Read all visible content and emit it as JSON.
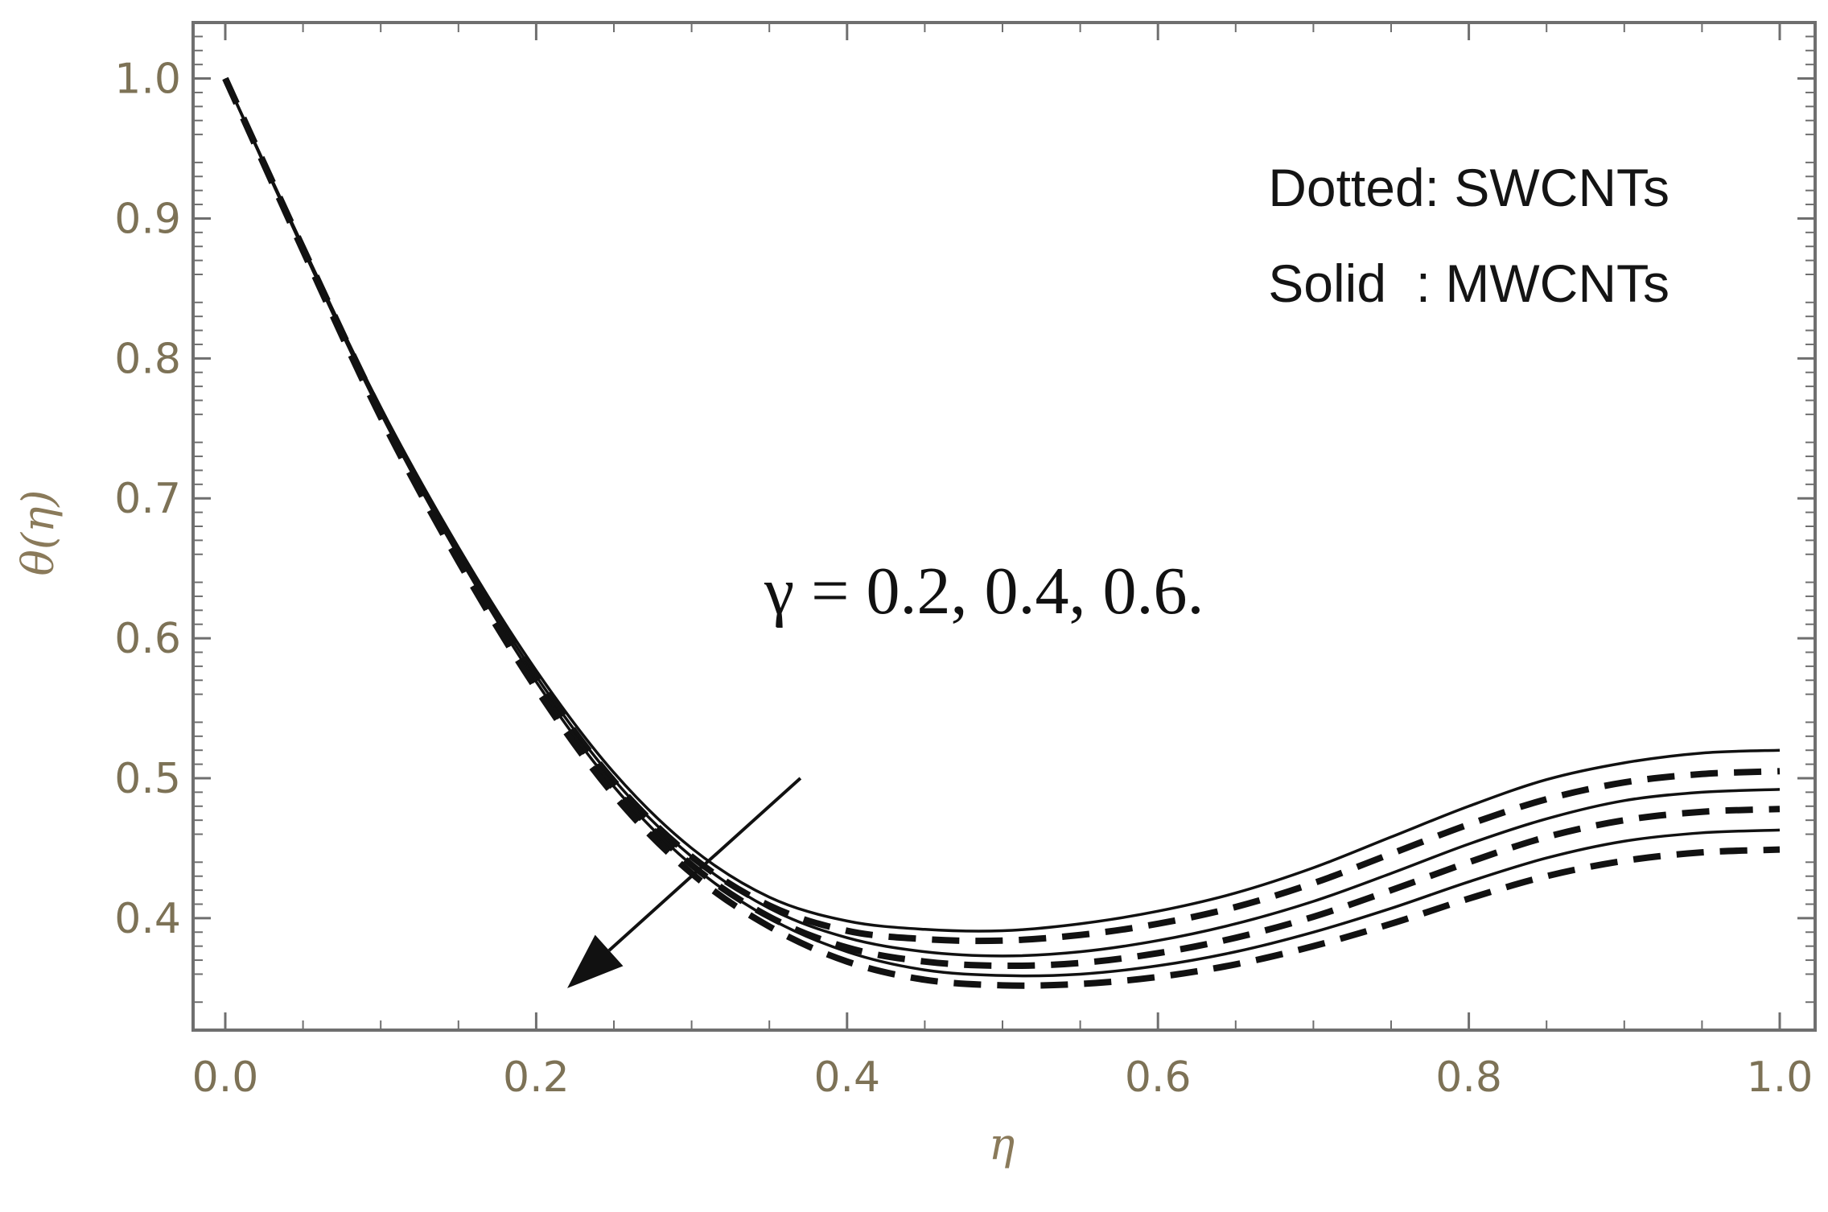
{
  "chart_data": {
    "type": "line",
    "title": "",
    "xlabel": "η",
    "ylabel": "θ(η)",
    "xlim": [
      0.0,
      1.0
    ],
    "ylim": [
      0.32,
      1.04
    ],
    "x_ticks": [
      "0.0",
      "0.2",
      "0.4",
      "0.6",
      "0.8",
      "1.0"
    ],
    "y_ticks": [
      "0.4",
      "0.5",
      "0.6",
      "0.7",
      "0.8",
      "0.9",
      "1.0"
    ],
    "grid": false,
    "legend_lines": [
      "Dotted: SWCNTs",
      "Solid  : MWCNTs"
    ],
    "legend_position": "top-right",
    "annotation": "γ = 0.2, 0.4, 0.6.",
    "arrow": {
      "from": [
        0.37,
        0.5
      ],
      "to": [
        0.22,
        0.35
      ],
      "meaning": "increasing γ"
    },
    "series": [
      {
        "style": "solid",
        "gamma": 0.2,
        "x": [
          0.0,
          0.05,
          0.1,
          0.15,
          0.2,
          0.25,
          0.3,
          0.35,
          0.4,
          0.45,
          0.5,
          0.55,
          0.6,
          0.65,
          0.7,
          0.75,
          0.8,
          0.85,
          0.9,
          0.95,
          1.0
        ],
        "y": [
          1.0,
          0.88,
          0.765,
          0.665,
          0.577,
          0.504,
          0.45,
          0.415,
          0.398,
          0.392,
          0.391,
          0.396,
          0.405,
          0.418,
          0.436,
          0.458,
          0.48,
          0.499,
          0.511,
          0.518,
          0.52
        ]
      },
      {
        "style": "dotted",
        "gamma": 0.2,
        "x": [
          0.0,
          0.05,
          0.1,
          0.15,
          0.2,
          0.25,
          0.3,
          0.35,
          0.4,
          0.45,
          0.5,
          0.55,
          0.6,
          0.65,
          0.7,
          0.75,
          0.8,
          0.85,
          0.9,
          0.95,
          1.0
        ],
        "y": [
          1.0,
          0.879,
          0.762,
          0.661,
          0.572,
          0.498,
          0.444,
          0.409,
          0.391,
          0.385,
          0.384,
          0.388,
          0.396,
          0.408,
          0.425,
          0.446,
          0.467,
          0.485,
          0.497,
          0.503,
          0.505
        ]
      },
      {
        "style": "solid",
        "gamma": 0.4,
        "x": [
          0.0,
          0.05,
          0.1,
          0.15,
          0.2,
          0.25,
          0.3,
          0.35,
          0.4,
          0.45,
          0.5,
          0.55,
          0.6,
          0.65,
          0.7,
          0.75,
          0.8,
          0.85,
          0.9,
          0.95,
          1.0
        ],
        "y": [
          1.0,
          0.879,
          0.763,
          0.662,
          0.573,
          0.499,
          0.444,
          0.407,
          0.386,
          0.376,
          0.373,
          0.376,
          0.384,
          0.396,
          0.412,
          0.432,
          0.453,
          0.471,
          0.484,
          0.49,
          0.492
        ]
      },
      {
        "style": "dotted",
        "gamma": 0.4,
        "x": [
          0.0,
          0.05,
          0.1,
          0.15,
          0.2,
          0.25,
          0.3,
          0.35,
          0.4,
          0.45,
          0.5,
          0.55,
          0.6,
          0.65,
          0.7,
          0.75,
          0.8,
          0.85,
          0.9,
          0.95,
          1.0
        ],
        "y": [
          1.0,
          0.878,
          0.76,
          0.658,
          0.568,
          0.493,
          0.438,
          0.401,
          0.379,
          0.369,
          0.366,
          0.368,
          0.375,
          0.386,
          0.401,
          0.42,
          0.44,
          0.458,
          0.47,
          0.476,
          0.478
        ]
      },
      {
        "style": "solid",
        "gamma": 0.6,
        "x": [
          0.0,
          0.05,
          0.1,
          0.15,
          0.2,
          0.25,
          0.3,
          0.35,
          0.4,
          0.45,
          0.5,
          0.55,
          0.6,
          0.65,
          0.7,
          0.75,
          0.8,
          0.85,
          0.9,
          0.95,
          1.0
        ],
        "y": [
          1.0,
          0.878,
          0.761,
          0.659,
          0.569,
          0.494,
          0.438,
          0.4,
          0.376,
          0.363,
          0.359,
          0.36,
          0.366,
          0.376,
          0.39,
          0.407,
          0.426,
          0.443,
          0.455,
          0.461,
          0.463
        ]
      },
      {
        "style": "dotted",
        "gamma": 0.6,
        "x": [
          0.0,
          0.05,
          0.1,
          0.15,
          0.2,
          0.25,
          0.3,
          0.35,
          0.4,
          0.45,
          0.5,
          0.55,
          0.6,
          0.65,
          0.7,
          0.75,
          0.8,
          0.85,
          0.9,
          0.95,
          1.0
        ],
        "y": [
          1.0,
          0.877,
          0.758,
          0.655,
          0.564,
          0.488,
          0.432,
          0.394,
          0.369,
          0.356,
          0.352,
          0.353,
          0.358,
          0.367,
          0.38,
          0.396,
          0.414,
          0.43,
          0.441,
          0.447,
          0.449
        ]
      }
    ]
  }
}
